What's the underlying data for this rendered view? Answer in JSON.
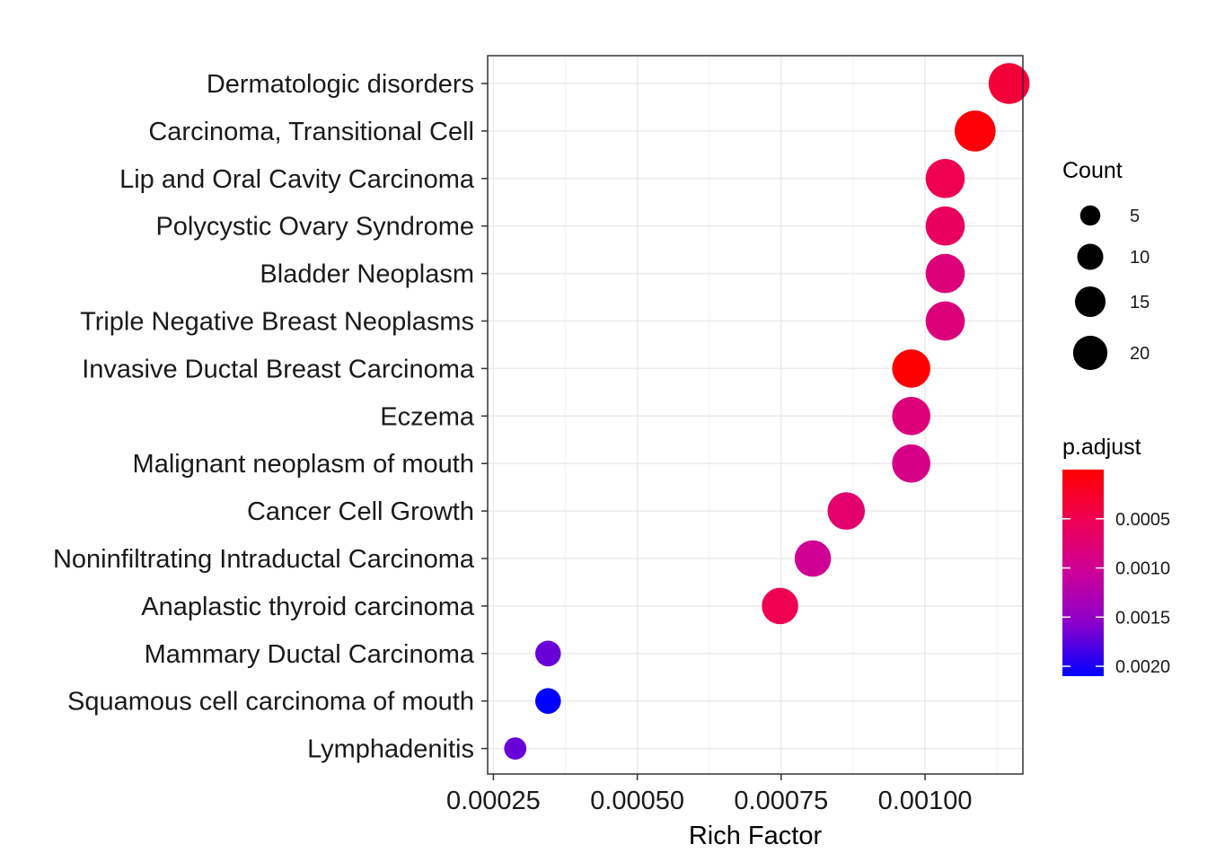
{
  "chart_data": {
    "type": "scatter",
    "xlabel": "Rich Factor",
    "ylabel": "",
    "xlim": [
      0.00024,
      0.00117
    ],
    "x_ticks": [
      0.00025,
      0.0005,
      0.00075,
      0.001
    ],
    "x_tick_labels": [
      "0.00025",
      "0.00050",
      "0.00075",
      "0.00100"
    ],
    "grid": true,
    "points": [
      {
        "label": "Dermatologic disorders",
        "x": 0.001146,
        "count": 20,
        "p_adjust": 0.00035
      },
      {
        "label": "Carcinoma, Transitional Cell",
        "x": 0.001087,
        "count": 20,
        "p_adjust": 5e-05
      },
      {
        "label": "Lip and Oral Cavity Carcinoma",
        "x": 0.001035,
        "count": 18,
        "p_adjust": 0.0005
      },
      {
        "label": "Polycystic Ovary Syndrome",
        "x": 0.001035,
        "count": 18,
        "p_adjust": 0.0006
      },
      {
        "label": "Bladder Neoplasm",
        "x": 0.001035,
        "count": 18,
        "p_adjust": 0.0008
      },
      {
        "label": "Triple Negative Breast Neoplasms",
        "x": 0.001035,
        "count": 18,
        "p_adjust": 0.0008
      },
      {
        "label": "Invasive Ductal Breast Carcinoma",
        "x": 0.000976,
        "count": 17,
        "p_adjust": 1e-05
      },
      {
        "label": "Eczema",
        "x": 0.000976,
        "count": 17,
        "p_adjust": 0.0008
      },
      {
        "label": "Malignant neoplasm of mouth",
        "x": 0.000976,
        "count": 17,
        "p_adjust": 0.0009
      },
      {
        "label": "Cancer Cell Growth",
        "x": 0.000863,
        "count": 16,
        "p_adjust": 0.0007
      },
      {
        "label": "Noninfiltrating Intraductal Carcinoma",
        "x": 0.000805,
        "count": 15,
        "p_adjust": 0.001
      },
      {
        "label": "Anaplastic thyroid carcinoma",
        "x": 0.000748,
        "count": 15,
        "p_adjust": 0.0005
      },
      {
        "label": "Mammary Ductal Carcinoma",
        "x": 0.000345,
        "count": 6,
        "p_adjust": 0.0017
      },
      {
        "label": "Squamous cell carcinoma of mouth",
        "x": 0.000345,
        "count": 6,
        "p_adjust": 0.0021
      },
      {
        "label": "Lymphadenitis",
        "x": 0.000288,
        "count": 4,
        "p_adjust": 0.0017
      }
    ],
    "size_legend": {
      "title": "Count",
      "breaks": [
        5,
        10,
        15,
        20
      ],
      "labels": [
        "5",
        "10",
        "15",
        "20"
      ]
    },
    "color_legend": {
      "title": "p.adjust",
      "range": [
        0.0,
        0.0021
      ],
      "breaks": [
        0.0005,
        0.001,
        0.0015,
        0.002
      ],
      "labels": [
        "0.0005",
        "0.0010",
        "0.0015",
        "0.0020"
      ],
      "low_color": "#FF0000",
      "high_color": "#0000FF"
    }
  }
}
